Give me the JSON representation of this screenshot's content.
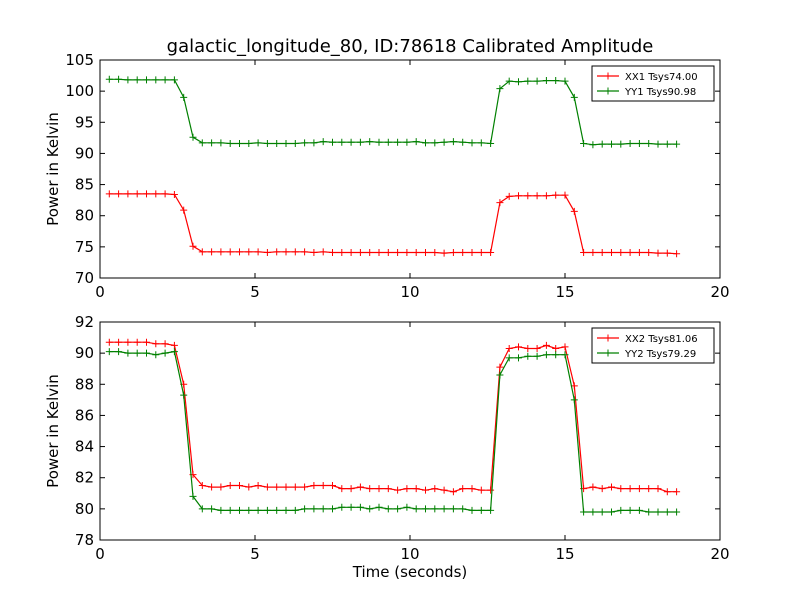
{
  "figure": {
    "title": "galactic_longitude_80, ID:78618 Calibrated Amplitude"
  },
  "chart_data": [
    {
      "type": "line",
      "ylabel": "Power in Kelvin",
      "xlabel": "",
      "xlim": [
        0,
        20
      ],
      "ylim": [
        70,
        105
      ],
      "xticks": [
        0,
        5,
        10,
        15,
        20
      ],
      "yticks": [
        70,
        75,
        80,
        85,
        90,
        95,
        100,
        105
      ],
      "legend_position": "top-right",
      "x": [
        0.3,
        0.6,
        0.9,
        1.2,
        1.5,
        1.8,
        2.1,
        2.4,
        2.7,
        3.0,
        3.3,
        3.6,
        3.9,
        4.2,
        4.5,
        4.8,
        5.1,
        5.4,
        5.7,
        6.0,
        6.3,
        6.6,
        6.9,
        7.2,
        7.5,
        7.8,
        8.1,
        8.4,
        8.7,
        9.0,
        9.3,
        9.6,
        9.9,
        10.2,
        10.5,
        10.8,
        11.1,
        11.4,
        11.7,
        12.0,
        12.3,
        12.6,
        12.9,
        13.2,
        13.5,
        13.8,
        14.1,
        14.4,
        14.7,
        15.0,
        15.3,
        15.6,
        15.9,
        16.2,
        16.5,
        16.8,
        17.1,
        17.4,
        17.7,
        18.0,
        18.3,
        18.6
      ],
      "series": [
        {
          "name": "XX1 Tsys74.00",
          "color": "#ff0000",
          "values": [
            83.5,
            83.5,
            83.5,
            83.5,
            83.5,
            83.5,
            83.5,
            83.4,
            80.9,
            75.1,
            74.2,
            74.2,
            74.2,
            74.2,
            74.2,
            74.2,
            74.2,
            74.1,
            74.2,
            74.2,
            74.2,
            74.2,
            74.1,
            74.2,
            74.1,
            74.1,
            74.1,
            74.1,
            74.1,
            74.1,
            74.1,
            74.1,
            74.1,
            74.1,
            74.1,
            74.1,
            74.0,
            74.1,
            74.1,
            74.1,
            74.1,
            74.1,
            82.1,
            83.1,
            83.2,
            83.2,
            83.2,
            83.2,
            83.3,
            83.3,
            80.7,
            74.1,
            74.1,
            74.1,
            74.1,
            74.1,
            74.1,
            74.1,
            74.1,
            74.0,
            74.0,
            73.9
          ]
        },
        {
          "name": "YY1 Tsys90.98",
          "color": "#008000",
          "values": [
            101.9,
            101.9,
            101.8,
            101.8,
            101.8,
            101.8,
            101.8,
            101.8,
            99.0,
            92.6,
            91.7,
            91.7,
            91.7,
            91.6,
            91.6,
            91.6,
            91.7,
            91.6,
            91.6,
            91.6,
            91.6,
            91.7,
            91.7,
            91.9,
            91.8,
            91.8,
            91.8,
            91.8,
            91.9,
            91.8,
            91.8,
            91.8,
            91.8,
            91.9,
            91.7,
            91.7,
            91.8,
            91.9,
            91.8,
            91.7,
            91.7,
            91.6,
            100.4,
            101.6,
            101.5,
            101.6,
            101.6,
            101.7,
            101.7,
            101.6,
            99.0,
            91.6,
            91.4,
            91.5,
            91.5,
            91.5,
            91.6,
            91.6,
            91.6,
            91.5,
            91.5,
            91.5
          ]
        }
      ]
    },
    {
      "type": "line",
      "ylabel": "Power in Kelvin",
      "xlabel": "Time (seconds)",
      "xlim": [
        0,
        20
      ],
      "ylim": [
        78,
        92
      ],
      "xticks": [
        0,
        5,
        10,
        15,
        20
      ],
      "yticks": [
        78,
        80,
        82,
        84,
        86,
        88,
        90,
        92
      ],
      "legend_position": "top-right",
      "x": [
        0.3,
        0.6,
        0.9,
        1.2,
        1.5,
        1.8,
        2.1,
        2.4,
        2.7,
        3.0,
        3.3,
        3.6,
        3.9,
        4.2,
        4.5,
        4.8,
        5.1,
        5.4,
        5.7,
        6.0,
        6.3,
        6.6,
        6.9,
        7.2,
        7.5,
        7.8,
        8.1,
        8.4,
        8.7,
        9.0,
        9.3,
        9.6,
        9.9,
        10.2,
        10.5,
        10.8,
        11.1,
        11.4,
        11.7,
        12.0,
        12.3,
        12.6,
        12.9,
        13.2,
        13.5,
        13.8,
        14.1,
        14.4,
        14.7,
        15.0,
        15.3,
        15.6,
        15.9,
        16.2,
        16.5,
        16.8,
        17.1,
        17.4,
        17.7,
        18.0,
        18.3,
        18.6
      ],
      "series": [
        {
          "name": "XX2 Tsys81.06",
          "color": "#ff0000",
          "values": [
            90.7,
            90.7,
            90.7,
            90.7,
            90.7,
            90.6,
            90.6,
            90.5,
            88.0,
            82.2,
            81.5,
            81.4,
            81.4,
            81.5,
            81.5,
            81.4,
            81.5,
            81.4,
            81.4,
            81.4,
            81.4,
            81.4,
            81.5,
            81.5,
            81.5,
            81.3,
            81.3,
            81.4,
            81.3,
            81.3,
            81.3,
            81.2,
            81.3,
            81.3,
            81.2,
            81.3,
            81.2,
            81.1,
            81.3,
            81.3,
            81.2,
            81.2,
            89.1,
            90.3,
            90.4,
            90.3,
            90.3,
            90.5,
            90.3,
            90.4,
            87.9,
            81.3,
            81.4,
            81.3,
            81.4,
            81.3,
            81.3,
            81.3,
            81.3,
            81.3,
            81.1,
            81.1
          ]
        },
        {
          "name": "YY2 Tsys79.29",
          "color": "#008000",
          "values": [
            90.1,
            90.1,
            90.0,
            90.0,
            90.0,
            89.9,
            90.0,
            90.1,
            87.3,
            80.8,
            80.0,
            80.0,
            79.9,
            79.9,
            79.9,
            79.9,
            79.9,
            79.9,
            79.9,
            79.9,
            79.9,
            80.0,
            80.0,
            80.0,
            80.0,
            80.1,
            80.1,
            80.1,
            80.0,
            80.1,
            80.0,
            80.0,
            80.1,
            80.0,
            80.0,
            80.0,
            80.0,
            80.0,
            80.0,
            79.9,
            79.9,
            79.9,
            88.6,
            89.7,
            89.7,
            89.8,
            89.8,
            89.9,
            89.9,
            89.9,
            87.0,
            79.8,
            79.8,
            79.8,
            79.8,
            79.9,
            79.9,
            79.9,
            79.8,
            79.8,
            79.8,
            79.8
          ]
        }
      ]
    }
  ]
}
